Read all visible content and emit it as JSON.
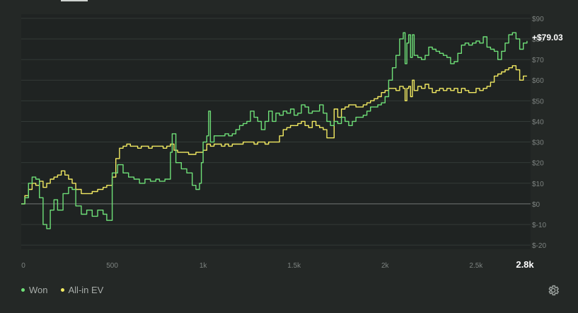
{
  "colors": {
    "background": "#242826",
    "plot_bg": "#1f2322",
    "grid": "#333a37",
    "zero_line": "#737976",
    "axis_text": "#7d8380",
    "won": "#6fe078",
    "ev": "#f2ea62",
    "end_label": "#ffffff"
  },
  "legend": {
    "won_label": "Won",
    "ev_label": "All-in EV"
  },
  "icons": {
    "settings": "gear-icon"
  },
  "chart_data": {
    "type": "line",
    "xlim": [
      0,
      2800
    ],
    "ylim": [
      -22,
      92
    ],
    "x_ticks": [
      {
        "value": 0,
        "label": "0"
      },
      {
        "value": 500,
        "label": "500"
      },
      {
        "value": 1000,
        "label": "1k"
      },
      {
        "value": 1500,
        "label": "1.5k"
      },
      {
        "value": 2000,
        "label": "2k"
      },
      {
        "value": 2500,
        "label": "2.5k"
      }
    ],
    "x_end_label": "2.8k",
    "y_ticks": [
      {
        "value": 90,
        "label": "$90"
      },
      {
        "value": 80,
        "label": "$80"
      },
      {
        "value": 70,
        "label": "$70"
      },
      {
        "value": 60,
        "label": "$60"
      },
      {
        "value": 50,
        "label": "$50"
      },
      {
        "value": 40,
        "label": "$40"
      },
      {
        "value": 30,
        "label": "$30"
      },
      {
        "value": 20,
        "label": "$20"
      },
      {
        "value": 10,
        "label": "$10"
      },
      {
        "value": 0,
        "label": "$0"
      },
      {
        "value": -10,
        "label": "$-10"
      },
      {
        "value": -20,
        "label": "$-20"
      }
    ],
    "grid": true,
    "final_label": "+$79.03",
    "series": [
      {
        "name": "Won",
        "color": "#6fe078",
        "points": [
          [
            0,
            0
          ],
          [
            20,
            3
          ],
          [
            40,
            10
          ],
          [
            60,
            13
          ],
          [
            80,
            12
          ],
          [
            100,
            3
          ],
          [
            120,
            -10
          ],
          [
            140,
            -12
          ],
          [
            160,
            -3
          ],
          [
            180,
            2
          ],
          [
            200,
            -3
          ],
          [
            230,
            5
          ],
          [
            260,
            8
          ],
          [
            280,
            7
          ],
          [
            300,
            -1
          ],
          [
            330,
            -5
          ],
          [
            360,
            -3
          ],
          [
            390,
            -6
          ],
          [
            420,
            -3
          ],
          [
            450,
            -5
          ],
          [
            470,
            -8
          ],
          [
            490,
            -8
          ],
          [
            500,
            15
          ],
          [
            530,
            19
          ],
          [
            560,
            15
          ],
          [
            590,
            13
          ],
          [
            620,
            12
          ],
          [
            650,
            10
          ],
          [
            680,
            12
          ],
          [
            710,
            11
          ],
          [
            740,
            12
          ],
          [
            760,
            11
          ],
          [
            790,
            12
          ],
          [
            810,
            12
          ],
          [
            820,
            25
          ],
          [
            830,
            34
          ],
          [
            850,
            20
          ],
          [
            880,
            17
          ],
          [
            910,
            15
          ],
          [
            940,
            9
          ],
          [
            960,
            7
          ],
          [
            980,
            10
          ],
          [
            990,
            20
          ],
          [
            1000,
            30
          ],
          [
            1020,
            33
          ],
          [
            1030,
            45
          ],
          [
            1040,
            30
          ],
          [
            1060,
            33
          ],
          [
            1090,
            33
          ],
          [
            1120,
            34
          ],
          [
            1140,
            33
          ],
          [
            1160,
            34
          ],
          [
            1180,
            36
          ],
          [
            1200,
            38
          ],
          [
            1220,
            39
          ],
          [
            1240,
            40
          ],
          [
            1260,
            45
          ],
          [
            1280,
            42
          ],
          [
            1300,
            40
          ],
          [
            1320,
            36
          ],
          [
            1340,
            40
          ],
          [
            1360,
            45
          ],
          [
            1380,
            40
          ],
          [
            1400,
            44
          ],
          [
            1420,
            43
          ],
          [
            1440,
            45
          ],
          [
            1460,
            44
          ],
          [
            1480,
            46
          ],
          [
            1500,
            43
          ],
          [
            1520,
            44
          ],
          [
            1540,
            48
          ],
          [
            1560,
            47
          ],
          [
            1580,
            44
          ],
          [
            1600,
            45
          ],
          [
            1620,
            45
          ],
          [
            1640,
            48
          ],
          [
            1660,
            44
          ],
          [
            1680,
            40
          ],
          [
            1700,
            38
          ],
          [
            1720,
            40
          ],
          [
            1740,
            39
          ],
          [
            1760,
            42
          ],
          [
            1780,
            40
          ],
          [
            1800,
            38
          ],
          [
            1820,
            40
          ],
          [
            1840,
            42
          ],
          [
            1860,
            42
          ],
          [
            1880,
            43
          ],
          [
            1900,
            45
          ],
          [
            1920,
            47
          ],
          [
            1940,
            47
          ],
          [
            1960,
            48
          ],
          [
            1980,
            49
          ],
          [
            2000,
            52
          ],
          [
            2020,
            60
          ],
          [
            2040,
            66
          ],
          [
            2060,
            72
          ],
          [
            2080,
            80
          ],
          [
            2100,
            83
          ],
          [
            2110,
            68
          ],
          [
            2120,
            78
          ],
          [
            2130,
            82
          ],
          [
            2140,
            71
          ],
          [
            2150,
            82
          ],
          [
            2160,
            72
          ],
          [
            2180,
            71
          ],
          [
            2200,
            70
          ],
          [
            2220,
            72
          ],
          [
            2240,
            76
          ],
          [
            2260,
            75
          ],
          [
            2280,
            74
          ],
          [
            2300,
            73
          ],
          [
            2320,
            72
          ],
          [
            2340,
            71
          ],
          [
            2360,
            68
          ],
          [
            2380,
            69
          ],
          [
            2400,
            73
          ],
          [
            2420,
            77
          ],
          [
            2440,
            78
          ],
          [
            2460,
            77
          ],
          [
            2480,
            78
          ],
          [
            2500,
            79
          ],
          [
            2520,
            78
          ],
          [
            2540,
            81
          ],
          [
            2560,
            76
          ],
          [
            2580,
            75
          ],
          [
            2600,
            74
          ],
          [
            2620,
            70
          ],
          [
            2640,
            74
          ],
          [
            2660,
            78
          ],
          [
            2680,
            82
          ],
          [
            2700,
            83
          ],
          [
            2720,
            80
          ],
          [
            2740,
            75
          ],
          [
            2760,
            78
          ],
          [
            2780,
            79.03
          ]
        ]
      },
      {
        "name": "All-in EV",
        "color": "#f2ea62",
        "points": [
          [
            0,
            0
          ],
          [
            20,
            4
          ],
          [
            40,
            7
          ],
          [
            60,
            10
          ],
          [
            80,
            9
          ],
          [
            100,
            11
          ],
          [
            120,
            8
          ],
          [
            140,
            10
          ],
          [
            160,
            12
          ],
          [
            180,
            13
          ],
          [
            200,
            14
          ],
          [
            220,
            16
          ],
          [
            240,
            14
          ],
          [
            260,
            12
          ],
          [
            280,
            10
          ],
          [
            300,
            7
          ],
          [
            330,
            5
          ],
          [
            360,
            5
          ],
          [
            390,
            6
          ],
          [
            420,
            7
          ],
          [
            450,
            8
          ],
          [
            470,
            9
          ],
          [
            490,
            9
          ],
          [
            500,
            13
          ],
          [
            520,
            22
          ],
          [
            540,
            27
          ],
          [
            560,
            28
          ],
          [
            580,
            29
          ],
          [
            600,
            28
          ],
          [
            620,
            28
          ],
          [
            640,
            27
          ],
          [
            660,
            28
          ],
          [
            680,
            28
          ],
          [
            700,
            27
          ],
          [
            720,
            28
          ],
          [
            740,
            28
          ],
          [
            760,
            28
          ],
          [
            780,
            27
          ],
          [
            800,
            28
          ],
          [
            820,
            29
          ],
          [
            840,
            26
          ],
          [
            860,
            25
          ],
          [
            880,
            25
          ],
          [
            900,
            25
          ],
          [
            920,
            24
          ],
          [
            940,
            24
          ],
          [
            960,
            25
          ],
          [
            980,
            25
          ],
          [
            1000,
            26
          ],
          [
            1020,
            29
          ],
          [
            1040,
            28
          ],
          [
            1060,
            29
          ],
          [
            1080,
            29
          ],
          [
            1100,
            28
          ],
          [
            1120,
            29
          ],
          [
            1140,
            28
          ],
          [
            1160,
            29
          ],
          [
            1180,
            29
          ],
          [
            1200,
            29
          ],
          [
            1220,
            30
          ],
          [
            1240,
            30
          ],
          [
            1260,
            30
          ],
          [
            1280,
            29
          ],
          [
            1300,
            30
          ],
          [
            1320,
            30
          ],
          [
            1340,
            29
          ],
          [
            1360,
            30
          ],
          [
            1380,
            30
          ],
          [
            1400,
            30
          ],
          [
            1420,
            33
          ],
          [
            1440,
            36
          ],
          [
            1460,
            37
          ],
          [
            1480,
            38
          ],
          [
            1500,
            38
          ],
          [
            1520,
            39
          ],
          [
            1540,
            40
          ],
          [
            1560,
            38
          ],
          [
            1580,
            37
          ],
          [
            1600,
            40
          ],
          [
            1620,
            38
          ],
          [
            1640,
            37
          ],
          [
            1660,
            36
          ],
          [
            1680,
            32
          ],
          [
            1700,
            32
          ],
          [
            1720,
            46
          ],
          [
            1740,
            42
          ],
          [
            1760,
            46
          ],
          [
            1780,
            47
          ],
          [
            1800,
            48
          ],
          [
            1820,
            48
          ],
          [
            1840,
            47
          ],
          [
            1860,
            47
          ],
          [
            1880,
            48
          ],
          [
            1900,
            49
          ],
          [
            1920,
            50
          ],
          [
            1940,
            51
          ],
          [
            1960,
            52
          ],
          [
            1980,
            54
          ],
          [
            2000,
            55
          ],
          [
            2020,
            56
          ],
          [
            2040,
            56
          ],
          [
            2060,
            55
          ],
          [
            2080,
            57
          ],
          [
            2100,
            56
          ],
          [
            2110,
            50
          ],
          [
            2120,
            56
          ],
          [
            2130,
            57
          ],
          [
            2140,
            52
          ],
          [
            2150,
            60
          ],
          [
            2160,
            55
          ],
          [
            2180,
            57
          ],
          [
            2200,
            56
          ],
          [
            2220,
            58
          ],
          [
            2240,
            56
          ],
          [
            2260,
            54
          ],
          [
            2280,
            55
          ],
          [
            2300,
            56
          ],
          [
            2320,
            55
          ],
          [
            2340,
            56
          ],
          [
            2360,
            55
          ],
          [
            2380,
            56
          ],
          [
            2400,
            54
          ],
          [
            2420,
            56
          ],
          [
            2440,
            55
          ],
          [
            2460,
            54
          ],
          [
            2480,
            54
          ],
          [
            2500,
            56
          ],
          [
            2520,
            55
          ],
          [
            2540,
            56
          ],
          [
            2560,
            57
          ],
          [
            2580,
            59
          ],
          [
            2600,
            62
          ],
          [
            2620,
            63
          ],
          [
            2640,
            64
          ],
          [
            2660,
            65
          ],
          [
            2680,
            66
          ],
          [
            2700,
            67
          ],
          [
            2720,
            65
          ],
          [
            2740,
            60
          ],
          [
            2760,
            62
          ],
          [
            2780,
            62
          ]
        ]
      }
    ]
  }
}
